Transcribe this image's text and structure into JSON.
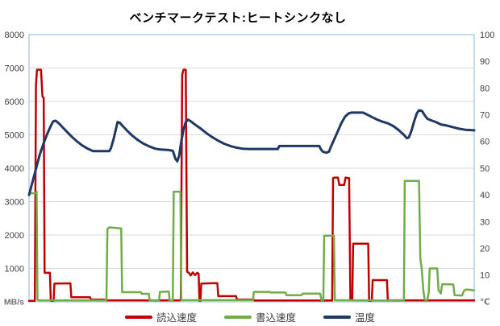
{
  "page": {
    "background": "#FFFFFF"
  },
  "chart_data": {
    "type": "line",
    "title": "ベンチマークテスト:ヒートシンクなし",
    "x_axis": {
      "range": [
        0,
        100
      ],
      "tick_labels": []
    },
    "y_axis_left": {
      "unit": "MB/s",
      "min": 0,
      "max": 8000,
      "step": 1000,
      "tick_labels": [
        "8000",
        "7000",
        "6000",
        "5000",
        "4000",
        "3000",
        "2000",
        "1000"
      ],
      "zero_label": "MB/s"
    },
    "y_axis_right": {
      "unit": "℃",
      "min": 0,
      "max": 100,
      "step": 10,
      "tick_labels": [
        "100",
        "90",
        "80",
        "70",
        "60",
        "50",
        "40",
        "30",
        "20",
        "10"
      ],
      "zero_label": "℃"
    },
    "grid": {
      "horizontal": true,
      "color": "#D9D9D9",
      "left_axis_step_units": 1000
    },
    "plot_border_color": "#9DC3E6",
    "tick_label_color": "#404040",
    "unit_label_color": "#737373",
    "legend": {
      "position": "bottom",
      "entries": [
        "読込速度",
        "書込速度",
        "温度"
      ]
    },
    "series": [
      {
        "id": "read-speed",
        "name": "読込速度",
        "axis": "left",
        "color": "#C00000",
        "width": 2.5,
        "points": [
          [
            0,
            30
          ],
          [
            1.3,
            30
          ],
          [
            1.55,
            6500
          ],
          [
            1.8,
            6950
          ],
          [
            2.7,
            6950
          ],
          [
            3.0,
            6150
          ],
          [
            3.3,
            6100
          ],
          [
            3.5,
            870
          ],
          [
            4.7,
            870
          ],
          [
            4.9,
            30
          ],
          [
            5.5,
            30
          ],
          [
            5.7,
            550
          ],
          [
            9.3,
            555
          ],
          [
            9.5,
            140
          ],
          [
            13.7,
            140
          ],
          [
            13.9,
            70
          ],
          [
            16.9,
            70
          ],
          [
            17.2,
            45
          ],
          [
            33.9,
            45
          ],
          [
            34.1,
            50
          ],
          [
            34.4,
            6800
          ],
          [
            34.7,
            6950
          ],
          [
            35.2,
            6950
          ],
          [
            35.5,
            900
          ],
          [
            35.9,
            870
          ],
          [
            36.3,
            790
          ],
          [
            36.8,
            880
          ],
          [
            37.3,
            800
          ],
          [
            37.8,
            870
          ],
          [
            38.1,
            840
          ],
          [
            38.3,
            30
          ],
          [
            38.5,
            30
          ],
          [
            38.7,
            550
          ],
          [
            42.3,
            560
          ],
          [
            42.5,
            170
          ],
          [
            46.5,
            170
          ],
          [
            46.7,
            70
          ],
          [
            50.4,
            70
          ],
          [
            50.6,
            40
          ],
          [
            68.1,
            40
          ],
          [
            68.3,
            3700
          ],
          [
            68.6,
            3720
          ],
          [
            69.4,
            3720
          ],
          [
            69.7,
            3500
          ],
          [
            70.8,
            3500
          ],
          [
            71.1,
            3720
          ],
          [
            71.9,
            3700
          ],
          [
            72.2,
            60
          ],
          [
            72.6,
            60
          ],
          [
            72.8,
            1740
          ],
          [
            76.2,
            1740
          ],
          [
            76.4,
            30
          ],
          [
            77.0,
            30
          ],
          [
            77.2,
            650
          ],
          [
            80.4,
            650
          ],
          [
            80.6,
            45
          ],
          [
            100,
            45
          ]
        ]
      },
      {
        "id": "write-speed",
        "name": "書込速度",
        "axis": "left",
        "color": "#70AD47",
        "width": 2.5,
        "points": [
          [
            0,
            3250
          ],
          [
            1.5,
            3250
          ],
          [
            1.7,
            3300
          ],
          [
            1.9,
            60
          ],
          [
            2.2,
            45
          ],
          [
            17.4,
            45
          ],
          [
            17.6,
            2180
          ],
          [
            18.0,
            2230
          ],
          [
            20.7,
            2200
          ],
          [
            20.9,
            290
          ],
          [
            25.1,
            290
          ],
          [
            25.3,
            240
          ],
          [
            26.9,
            240
          ],
          [
            27.1,
            45
          ],
          [
            29.2,
            45
          ],
          [
            29.4,
            300
          ],
          [
            31.4,
            310
          ],
          [
            31.6,
            45
          ],
          [
            32.3,
            45
          ],
          [
            32.5,
            3300
          ],
          [
            34.0,
            3300
          ],
          [
            34.2,
            50
          ],
          [
            50.3,
            50
          ],
          [
            50.5,
            300
          ],
          [
            54.0,
            300
          ],
          [
            54.2,
            280
          ],
          [
            57.6,
            280
          ],
          [
            57.8,
            200
          ],
          [
            61.2,
            200
          ],
          [
            61.5,
            245
          ],
          [
            65.4,
            245
          ],
          [
            65.7,
            50
          ],
          [
            66.1,
            50
          ],
          [
            66.3,
            1980
          ],
          [
            68.5,
            1980
          ],
          [
            68.7,
            50
          ],
          [
            84.2,
            35
          ],
          [
            84.4,
            3620
          ],
          [
            87.6,
            3620
          ],
          [
            87.9,
            1300
          ],
          [
            88.2,
            1000
          ],
          [
            88.6,
            300
          ],
          [
            88.9,
            60
          ],
          [
            89.5,
            60
          ],
          [
            89.8,
            290
          ],
          [
            90.0,
            1000
          ],
          [
            91.7,
            1000
          ],
          [
            92.0,
            350
          ],
          [
            92.5,
            250
          ],
          [
            92.8,
            530
          ],
          [
            95.3,
            520
          ],
          [
            95.6,
            200
          ],
          [
            97.3,
            190
          ],
          [
            97.7,
            330
          ],
          [
            98.2,
            370
          ],
          [
            99.2,
            360
          ],
          [
            100,
            340
          ]
        ]
      },
      {
        "id": "temperature",
        "name": "温度",
        "axis": "right",
        "color": "#1F3864",
        "width": 3,
        "points": [
          [
            0,
            40
          ],
          [
            0.8,
            45
          ],
          [
            1.6,
            50
          ],
          [
            2.4,
            55
          ],
          [
            3.2,
            59
          ],
          [
            4.0,
            62.5
          ],
          [
            4.8,
            65.5
          ],
          [
            5.4,
            67.5
          ],
          [
            5.9,
            67.8
          ],
          [
            6.6,
            67
          ],
          [
            7.6,
            65.2
          ],
          [
            8.6,
            63.5
          ],
          [
            9.6,
            61.8
          ],
          [
            10.8,
            60
          ],
          [
            12.0,
            58.5
          ],
          [
            13.2,
            57.3
          ],
          [
            14.4,
            56.4
          ],
          [
            18.0,
            56.4
          ],
          [
            18.4,
            57.5
          ],
          [
            19.0,
            61
          ],
          [
            19.5,
            64.5
          ],
          [
            19.9,
            67.3
          ],
          [
            20.4,
            67
          ],
          [
            21.2,
            65.5
          ],
          [
            22.2,
            63.8
          ],
          [
            23.2,
            62.2
          ],
          [
            24.4,
            60.6
          ],
          [
            25.6,
            59.3
          ],
          [
            27.0,
            58.2
          ],
          [
            28.4,
            57.3
          ],
          [
            29.6,
            57
          ],
          [
            31.4,
            56.8
          ],
          [
            32.3,
            56.5
          ],
          [
            32.9,
            53.5
          ],
          [
            33.3,
            52.6
          ],
          [
            33.7,
            54.5
          ],
          [
            34.2,
            60
          ],
          [
            34.7,
            64.5
          ],
          [
            35.2,
            67.3
          ],
          [
            35.7,
            68.2
          ],
          [
            36.4,
            67.5
          ],
          [
            37.4,
            66.2
          ],
          [
            38.6,
            64.8
          ],
          [
            39.8,
            63.2
          ],
          [
            41.0,
            61.8
          ],
          [
            42.4,
            60.4
          ],
          [
            43.8,
            59.2
          ],
          [
            45.2,
            58.3
          ],
          [
            46.6,
            57.7
          ],
          [
            48.0,
            57.3
          ],
          [
            49.4,
            57.2
          ],
          [
            55.9,
            57.2
          ],
          [
            56.2,
            58.3
          ],
          [
            65.2,
            58.3
          ],
          [
            65.6,
            57
          ],
          [
            66.0,
            56.2
          ],
          [
            66.8,
            55.8
          ],
          [
            67.4,
            56.2
          ],
          [
            67.8,
            58
          ],
          [
            68.6,
            61
          ],
          [
            69.4,
            64
          ],
          [
            70.2,
            67
          ],
          [
            71.0,
            69.3
          ],
          [
            71.8,
            70.5
          ],
          [
            72.4,
            70.8
          ],
          [
            75.0,
            70.8
          ],
          [
            75.8,
            70.2
          ],
          [
            77.0,
            69.2
          ],
          [
            78.2,
            68.2
          ],
          [
            79.4,
            67.4
          ],
          [
            80.6,
            66.8
          ],
          [
            81.8,
            65.8
          ],
          [
            83.0,
            64.3
          ],
          [
            84.2,
            62.5
          ],
          [
            84.9,
            61.2
          ],
          [
            85.3,
            61.5
          ],
          [
            85.9,
            64
          ],
          [
            86.5,
            67.5
          ],
          [
            87.1,
            70.5
          ],
          [
            87.6,
            71.7
          ],
          [
            88.3,
            71.4
          ],
          [
            88.9,
            69.8
          ],
          [
            89.5,
            68.5
          ],
          [
            90.5,
            67.8
          ],
          [
            91.5,
            67.2
          ],
          [
            92.5,
            66.4
          ],
          [
            93.8,
            66
          ],
          [
            95.2,
            65.4
          ],
          [
            96.6,
            64.8
          ],
          [
            98.0,
            64.4
          ],
          [
            100,
            64.2
          ]
        ]
      }
    ]
  }
}
